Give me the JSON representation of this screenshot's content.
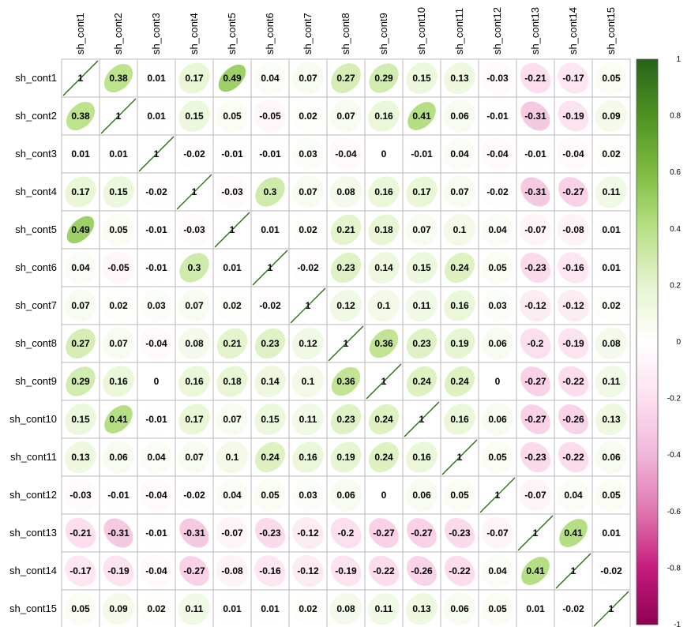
{
  "chart_data": {
    "type": "heatmap",
    "variables": [
      "sh_cont1",
      "sh_cont2",
      "sh_cont3",
      "sh_cont4",
      "sh_cont5",
      "sh_cont6",
      "sh_cont7",
      "sh_cont8",
      "sh_cont9",
      "sh_cont10",
      "sh_cont11",
      "sh_cont12",
      "sh_cont13",
      "sh_cont14",
      "sh_cont15"
    ],
    "matrix": [
      [
        1,
        0.38,
        0.01,
        0.17,
        0.49,
        0.04,
        0.07,
        0.27,
        0.29,
        0.15,
        0.13,
        -0.03,
        -0.21,
        -0.17,
        0.05
      ],
      [
        0.38,
        1,
        0.01,
        0.15,
        0.05,
        -0.05,
        0.02,
        0.07,
        0.16,
        0.41,
        0.06,
        -0.01,
        -0.31,
        -0.19,
        0.09
      ],
      [
        0.01,
        0.01,
        1,
        -0.02,
        -0.01,
        -0.01,
        0.03,
        -0.04,
        0,
        -0.01,
        0.04,
        -0.04,
        -0.01,
        -0.04,
        0.02
      ],
      [
        0.17,
        0.15,
        -0.02,
        1,
        -0.03,
        0.3,
        0.07,
        0.08,
        0.16,
        0.17,
        0.07,
        -0.02,
        -0.31,
        -0.27,
        0.11
      ],
      [
        0.49,
        0.05,
        -0.01,
        -0.03,
        1,
        0.01,
        0.02,
        0.21,
        0.18,
        0.07,
        0.1,
        0.04,
        -0.07,
        -0.08,
        0.01
      ],
      [
        0.04,
        -0.05,
        -0.01,
        0.3,
        0.01,
        1,
        -0.02,
        0.23,
        0.14,
        0.15,
        0.24,
        0.05,
        -0.23,
        -0.16,
        0.01
      ],
      [
        0.07,
        0.02,
        0.03,
        0.07,
        0.02,
        -0.02,
        1,
        0.12,
        0.1,
        0.11,
        0.16,
        0.03,
        -0.12,
        -0.12,
        0.02
      ],
      [
        0.27,
        0.07,
        -0.04,
        0.08,
        0.21,
        0.23,
        0.12,
        1,
        0.36,
        0.23,
        0.19,
        0.06,
        -0.2,
        -0.19,
        0.08
      ],
      [
        0.29,
        0.16,
        0,
        0.16,
        0.18,
        0.14,
        0.1,
        0.36,
        1,
        0.24,
        0.24,
        0,
        -0.27,
        -0.22,
        0.11
      ],
      [
        0.15,
        0.41,
        -0.01,
        0.17,
        0.07,
        0.15,
        0.11,
        0.23,
        0.24,
        1,
        0.16,
        0.06,
        -0.27,
        -0.26,
        0.13
      ],
      [
        0.13,
        0.06,
        0.04,
        0.07,
        0.1,
        0.24,
        0.16,
        0.19,
        0.24,
        0.16,
        1,
        0.05,
        -0.23,
        -0.22,
        0.06
      ],
      [
        -0.03,
        -0.01,
        -0.04,
        -0.02,
        0.04,
        0.05,
        0.03,
        0.06,
        0,
        0.06,
        0.05,
        1,
        -0.07,
        0.04,
        0.05
      ],
      [
        -0.21,
        -0.31,
        -0.01,
        -0.31,
        -0.07,
        -0.23,
        -0.12,
        -0.2,
        -0.27,
        -0.27,
        -0.23,
        -0.07,
        1,
        0.41,
        0.01
      ],
      [
        -0.17,
        -0.19,
        -0.04,
        -0.27,
        -0.08,
        -0.16,
        -0.12,
        -0.19,
        -0.22,
        -0.26,
        -0.22,
        0.04,
        0.41,
        1,
        -0.02
      ],
      [
        0.05,
        0.09,
        0.02,
        0.11,
        0.01,
        0.01,
        0.02,
        0.08,
        0.11,
        0.13,
        0.06,
        0.05,
        0.01,
        -0.02,
        1
      ]
    ],
    "colorbar": {
      "range": [
        -1,
        1
      ],
      "ticks": [
        -1,
        -0.8,
        -0.6,
        -0.4,
        -0.2,
        0,
        0.2,
        0.4,
        0.6,
        0.8,
        1
      ],
      "tick_labels": [
        "-1",
        "-0.8",
        "-0.6",
        "-0.4",
        "-0.2",
        "0",
        "0.2",
        "0.4",
        "0.6",
        "0.8",
        "1"
      ],
      "colors": [
        "#8E0152",
        "#C51B7D",
        "#DE77AE",
        "#F1B6DA",
        "#FDE0EF",
        "#FFFFFF",
        "#E6F5D0",
        "#B8E186",
        "#7FBC41",
        "#4D9221",
        "#276419"
      ]
    },
    "method": "ellipse",
    "grid": true,
    "legend_position": "right"
  }
}
